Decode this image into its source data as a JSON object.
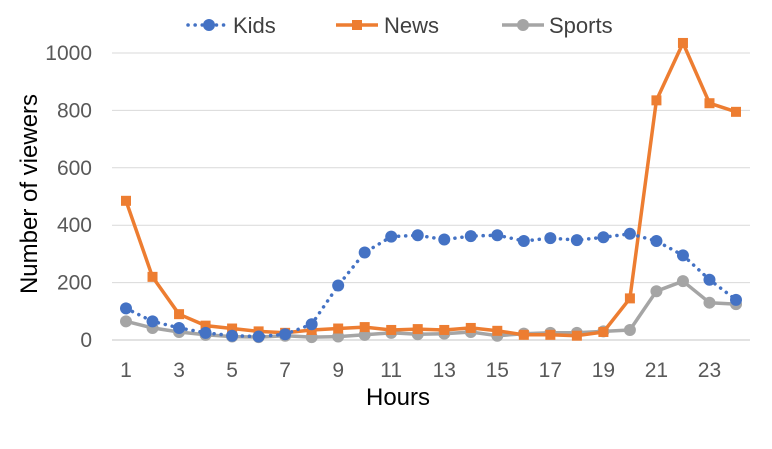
{
  "chart_data": {
    "type": "line",
    "title": "",
    "xlabel": "Hours",
    "ylabel": "Number of viewers",
    "x": [
      1,
      2,
      3,
      4,
      5,
      6,
      7,
      8,
      9,
      10,
      11,
      12,
      13,
      14,
      15,
      16,
      17,
      18,
      19,
      20,
      21,
      22,
      23,
      24
    ],
    "xtick_labels": [
      "1",
      "3",
      "5",
      "7",
      "9",
      "11",
      "13",
      "15",
      "17",
      "19",
      "21",
      "23"
    ],
    "xlim": [
      1,
      24
    ],
    "ylim": [
      0,
      1000
    ],
    "yticks": [
      0,
      200,
      400,
      600,
      800,
      1000
    ],
    "grid": "horizontal",
    "legend_position": "top",
    "series": [
      {
        "name": "Kids",
        "color": "#4472c4",
        "line_style": "dotted",
        "marker": "circle",
        "values": [
          110,
          65,
          42,
          25,
          15,
          12,
          20,
          55,
          190,
          305,
          360,
          365,
          350,
          362,
          365,
          345,
          355,
          348,
          358,
          370,
          345,
          295,
          210,
          140
        ]
      },
      {
        "name": "News",
        "color": "#ed7d31",
        "line_style": "solid",
        "marker": "square",
        "values": [
          485,
          220,
          90,
          50,
          40,
          30,
          25,
          35,
          40,
          45,
          35,
          38,
          35,
          42,
          32,
          18,
          18,
          15,
          28,
          145,
          835,
          1035,
          825,
          795
        ]
      },
      {
        "name": "Sports",
        "color": "#a5a5a5",
        "line_style": "solid",
        "marker": "circle",
        "values": [
          65,
          42,
          28,
          18,
          12,
          10,
          15,
          10,
          12,
          18,
          25,
          20,
          22,
          28,
          15,
          22,
          25,
          25,
          30,
          35,
          170,
          205,
          130,
          125
        ]
      }
    ]
  }
}
